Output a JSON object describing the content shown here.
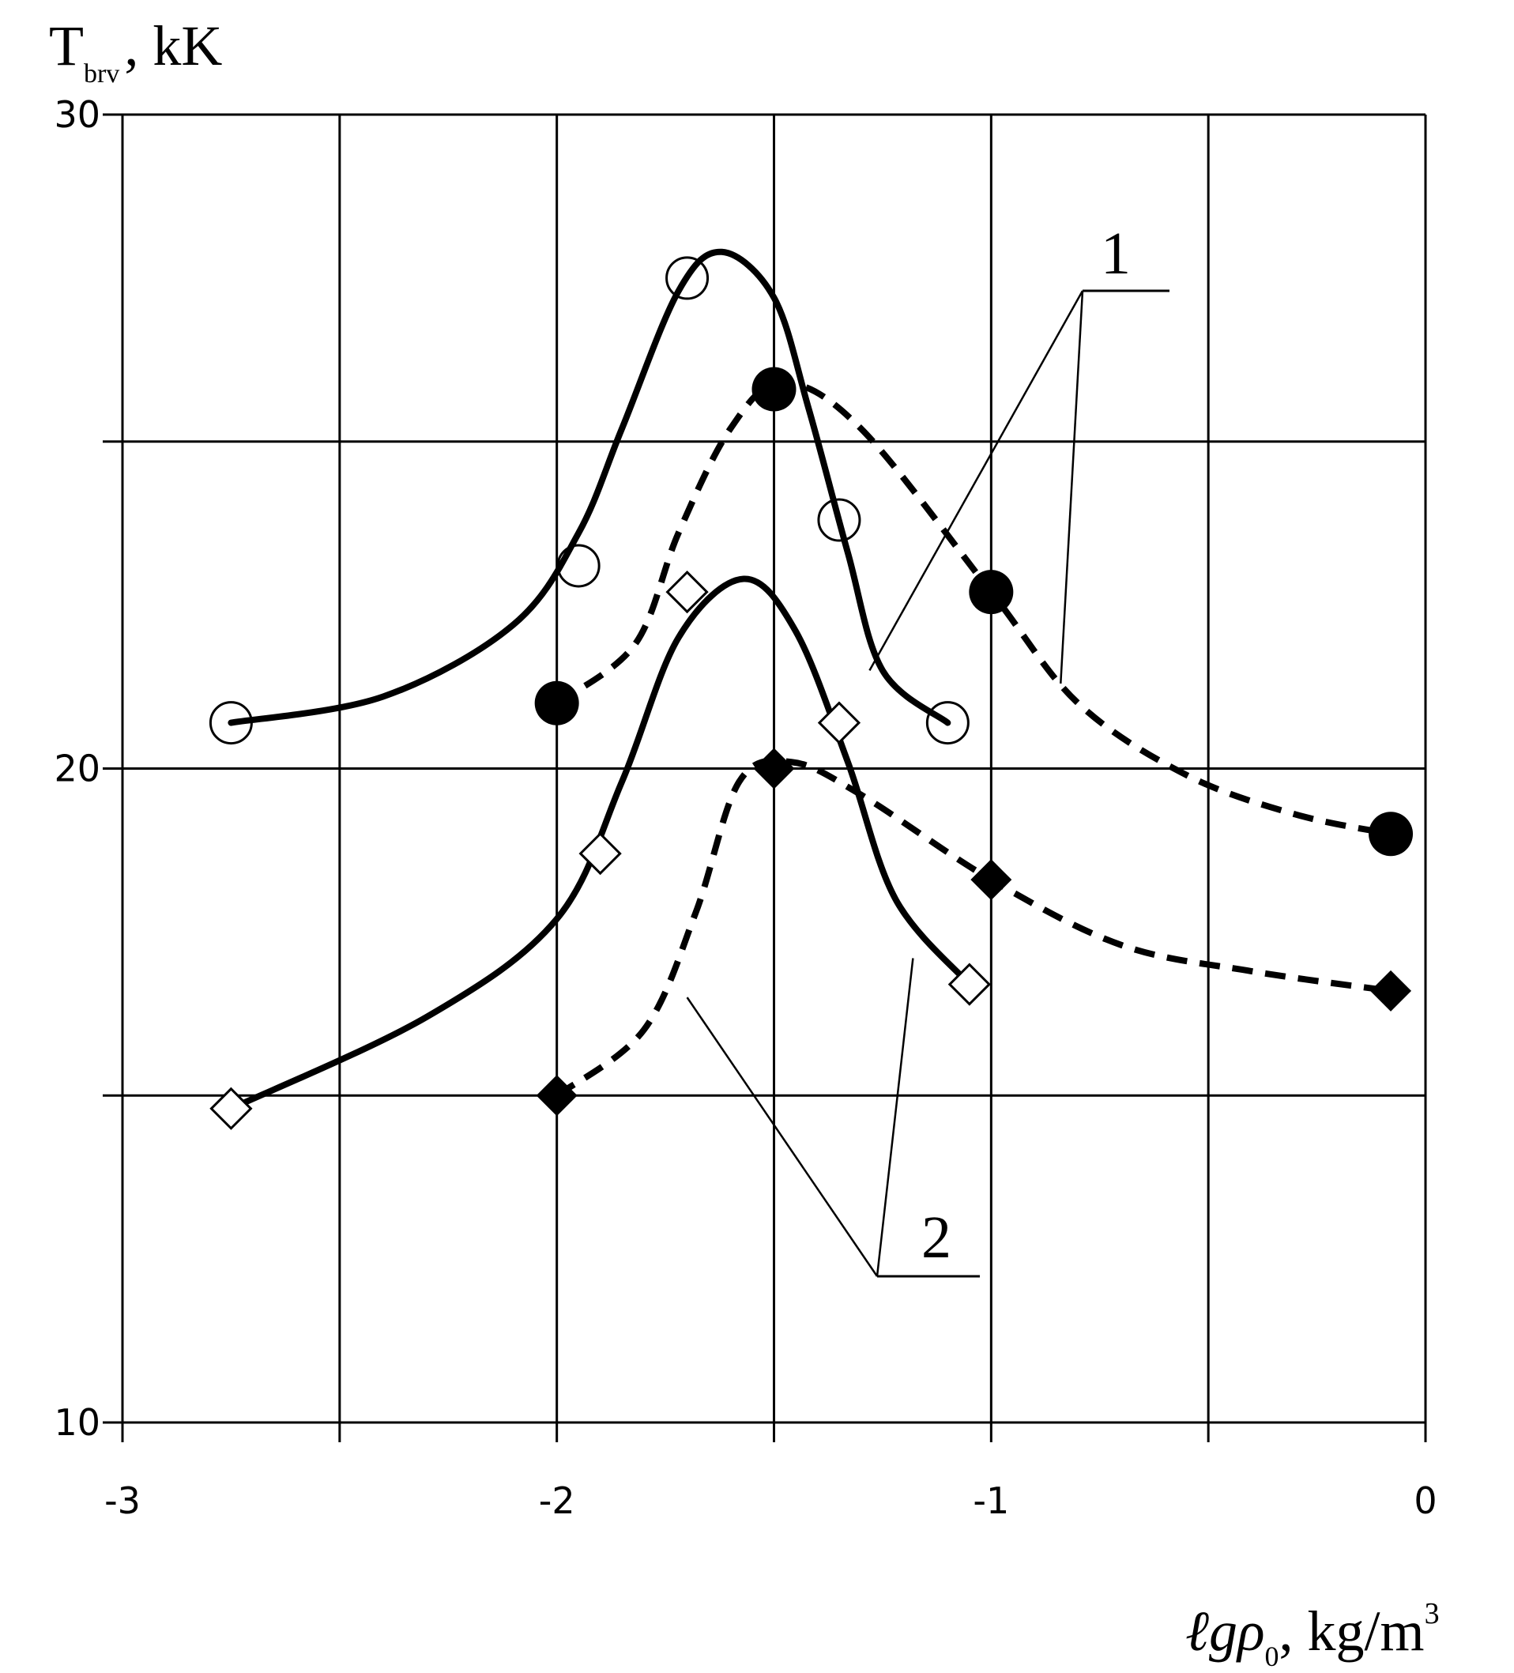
{
  "chart_data": {
    "type": "line",
    "title": "",
    "ylabel": {
      "main": "T",
      "sub": "brv",
      "rest": ", kK"
    },
    "xlabel": {
      "pre": "ℓgρ",
      "sub": "0",
      "mid": ", kg/m",
      "sup": "3"
    },
    "xlim": [
      -3,
      0
    ],
    "ylim": [
      10,
      30
    ],
    "x_ticks": [
      {
        "value": -3,
        "label": "-3"
      },
      {
        "value": -2,
        "label": "-2"
      },
      {
        "value": -1,
        "label": "-1"
      },
      {
        "value": 0,
        "label": "0"
      }
    ],
    "y_ticks": [
      {
        "value": 10,
        "label": "10"
      },
      {
        "value": 20,
        "label": "20"
      },
      {
        "value": 30,
        "label": "30"
      }
    ],
    "grid": true,
    "grid_x": [
      -3,
      -2.5,
      -2,
      -1.5,
      -1,
      -0.5,
      0
    ],
    "grid_y": [
      10,
      15,
      20,
      25,
      30
    ],
    "series": [
      {
        "marker": "open-circle",
        "line": "solid",
        "color": "#000000",
        "points": [
          [
            -2.75,
            20.7
          ],
          [
            -1.95,
            23.1
          ],
          [
            -1.7,
            27.5
          ],
          [
            -1.35,
            23.8
          ],
          [
            -1.1,
            20.7
          ]
        ],
        "curve": [
          [
            -2.75,
            20.7
          ],
          [
            -2.4,
            21.1
          ],
          [
            -2.1,
            22.2
          ],
          [
            -1.95,
            23.6
          ],
          [
            -1.85,
            25.2
          ],
          [
            -1.72,
            27.3
          ],
          [
            -1.62,
            27.9
          ],
          [
            -1.5,
            27.2
          ],
          [
            -1.42,
            25.5
          ],
          [
            -1.33,
            23.3
          ],
          [
            -1.25,
            21.5
          ],
          [
            -1.1,
            20.7
          ]
        ]
      },
      {
        "marker": "filled-circle",
        "line": "dashed",
        "color": "#000000",
        "points": [
          [
            -2.0,
            21.0
          ],
          [
            -1.5,
            25.8
          ],
          [
            -1.0,
            22.7
          ],
          [
            -0.08,
            19.0
          ]
        ],
        "curve": [
          [
            -2.0,
            21.0
          ],
          [
            -1.82,
            21.9
          ],
          [
            -1.72,
            23.6
          ],
          [
            -1.6,
            25.2
          ],
          [
            -1.48,
            25.9
          ],
          [
            -1.3,
            25.2
          ],
          [
            -1.0,
            22.7
          ],
          [
            -0.8,
            21.0
          ],
          [
            -0.55,
            19.9
          ],
          [
            -0.3,
            19.3
          ],
          [
            -0.08,
            19.0
          ]
        ]
      },
      {
        "marker": "open-diamond",
        "line": "solid",
        "color": "#000000",
        "points": [
          [
            -2.75,
            14.8
          ],
          [
            -1.9,
            18.7
          ],
          [
            -1.7,
            22.7
          ],
          [
            -1.35,
            20.7
          ],
          [
            -1.05,
            16.7
          ]
        ],
        "curve": [
          [
            -2.75,
            14.8
          ],
          [
            -2.3,
            16.2
          ],
          [
            -2.0,
            17.7
          ],
          [
            -1.85,
            19.8
          ],
          [
            -1.72,
            22.0
          ],
          [
            -1.57,
            22.9
          ],
          [
            -1.45,
            22.1
          ],
          [
            -1.33,
            20.1
          ],
          [
            -1.22,
            18.0
          ],
          [
            -1.05,
            16.7
          ]
        ]
      },
      {
        "marker": "filled-diamond",
        "line": "dashed",
        "color": "#000000",
        "points": [
          [
            -2.0,
            15.0
          ],
          [
            -1.5,
            20.0
          ],
          [
            -1.0,
            18.3
          ],
          [
            -0.08,
            16.6
          ]
        ],
        "curve": [
          [
            -2.0,
            15.0
          ],
          [
            -1.8,
            16.0
          ],
          [
            -1.68,
            17.8
          ],
          [
            -1.58,
            19.8
          ],
          [
            -1.46,
            20.1
          ],
          [
            -1.3,
            19.6
          ],
          [
            -1.0,
            18.3
          ],
          [
            -0.7,
            17.3
          ],
          [
            -0.4,
            16.9
          ],
          [
            -0.08,
            16.6
          ]
        ]
      }
    ],
    "annotations": [
      {
        "label": "1",
        "leader_targets": [
          [
            -1.28,
            21.5
          ],
          [
            -0.84,
            21.3
          ]
        ]
      },
      {
        "label": "2",
        "leader_targets": [
          [
            -1.7,
            16.5
          ],
          [
            -1.18,
            17.1
          ]
        ]
      }
    ]
  }
}
